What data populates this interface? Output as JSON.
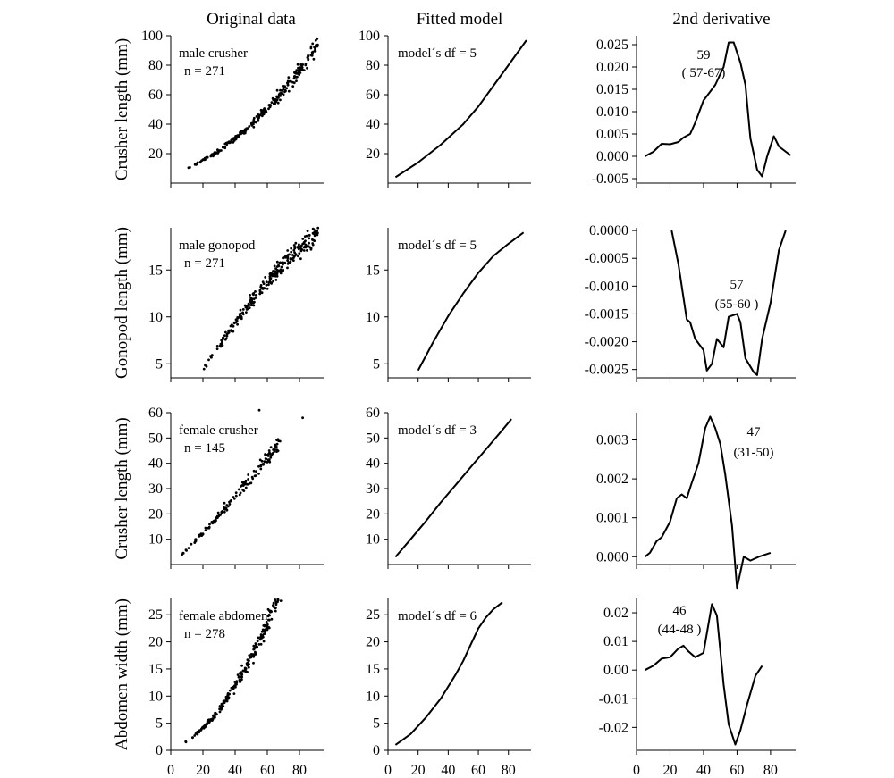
{
  "column_titles": [
    "Original data",
    "Fitted model",
    "2nd derivative"
  ],
  "chart_data": [
    {
      "type": "scatter",
      "row": "male-crusher",
      "column": "original",
      "ylabel": "Crusher length (mm)",
      "annotation": [
        "male crusher",
        "n = 271"
      ],
      "xlim": [
        0,
        95
      ],
      "ylim": [
        0,
        100
      ],
      "yticks": [
        20,
        40,
        60,
        80,
        100
      ],
      "trend": {
        "a": 6,
        "b": 0.34,
        "c": 0.0068
      },
      "n": 271,
      "range": [
        5,
        92
      ],
      "jitter": 0.05
    },
    {
      "type": "line",
      "row": "male-crusher",
      "column": "fitted",
      "annotation": [
        "model´s df = 5"
      ],
      "xlim": [
        0,
        95
      ],
      "ylim": [
        0,
        100
      ],
      "yticks": [
        20,
        40,
        60,
        80,
        100
      ],
      "x": [
        5,
        20,
        35,
        50,
        60,
        70,
        80,
        92
      ],
      "y": [
        4,
        14,
        26,
        40,
        52,
        66,
        80,
        97
      ]
    },
    {
      "type": "line",
      "row": "male-crusher",
      "column": "2nd-derivative",
      "annotation": [
        "59",
        "( 57-67)"
      ],
      "xlim": [
        0,
        95
      ],
      "ylim": [
        -0.006,
        0.027
      ],
      "yticks": [
        -0.005,
        0.0,
        0.005,
        0.01,
        0.015,
        0.02,
        0.025
      ],
      "ytick_labels": [
        "-0.005",
        "0.000",
        "0.005",
        "0.010",
        "0.015",
        "0.020",
        "0.025"
      ],
      "x": [
        5,
        10,
        15,
        20,
        25,
        28,
        32,
        35,
        40,
        43,
        47,
        52,
        55,
        58,
        62,
        65,
        68,
        72,
        75,
        78,
        82,
        85,
        92
      ],
      "y": [
        0.0,
        0.001,
        0.0028,
        0.0027,
        0.0032,
        0.0042,
        0.005,
        0.0075,
        0.0125,
        0.014,
        0.016,
        0.02,
        0.0255,
        0.0255,
        0.021,
        0.016,
        0.004,
        -0.003,
        -0.0045,
        0.0,
        0.0045,
        0.0022,
        0.0002
      ]
    },
    {
      "type": "scatter",
      "row": "male-gonopod",
      "column": "original",
      "ylabel": "Gonopod length (mm)",
      "annotation": [
        "male gonopod",
        "n = 271"
      ],
      "xlim": [
        0,
        95
      ],
      "ylim": [
        3.5,
        19.5
      ],
      "yticks": [
        5,
        10,
        15
      ],
      "trend": {
        "a": -1.6,
        "b": 0.312,
        "c": -0.00095
      },
      "n": 271,
      "range": [
        20,
        92
      ],
      "jitter": 0.05
    },
    {
      "type": "line",
      "row": "male-gonopod",
      "column": "fitted",
      "annotation": [
        "model´s df = 5"
      ],
      "xlim": [
        0,
        95
      ],
      "ylim": [
        3.5,
        19.5
      ],
      "yticks": [
        5,
        10,
        15
      ],
      "x": [
        20,
        30,
        40,
        50,
        60,
        70,
        80,
        90
      ],
      "y": [
        4.3,
        7.3,
        10.1,
        12.5,
        14.7,
        16.5,
        17.8,
        19.0
      ]
    },
    {
      "type": "line",
      "row": "male-gonopod",
      "column": "2nd-derivative",
      "annotation": [
        "57",
        "(55-60  )"
      ],
      "xlim": [
        0,
        95
      ],
      "ylim": [
        -0.00265,
        5e-05
      ],
      "yticks": [
        -0.0025,
        -0.002,
        -0.0015,
        -0.001,
        -0.0005,
        0.0
      ],
      "ytick_labels": [
        "-0.0025",
        "-0.0020",
        "-0.0015",
        "-0.0010",
        "-0.0005",
        "0.0000"
      ],
      "x": [
        21,
        25,
        30,
        32,
        35,
        40,
        42,
        45,
        48,
        52,
        55,
        60,
        62,
        65,
        70,
        72,
        75,
        80,
        85,
        89
      ],
      "y": [
        0.0,
        -0.0006,
        -0.0016,
        -0.00165,
        -0.00195,
        -0.00215,
        -0.00252,
        -0.0024,
        -0.00195,
        -0.0021,
        -0.00155,
        -0.0015,
        -0.00165,
        -0.0023,
        -0.00255,
        -0.0026,
        -0.00195,
        -0.0013,
        -0.00035,
        0.0
      ]
    },
    {
      "type": "scatter",
      "row": "female-crusher",
      "column": "original",
      "ylabel": "Crusher length (mm)",
      "annotation": [
        "female crusher",
        "n = 145"
      ],
      "xlim": [
        0,
        95
      ],
      "ylim": [
        0,
        60
      ],
      "yticks": [
        10,
        20,
        30,
        40,
        50,
        60
      ],
      "trend": {
        "a": -0.4,
        "b": 0.62,
        "c": 0.0015
      },
      "n": 145,
      "range": [
        5,
        68
      ],
      "jitter": 0.06,
      "extra": [
        [
          55,
          61
        ],
        [
          82,
          58
        ]
      ]
    },
    {
      "type": "line",
      "row": "female-crusher",
      "column": "fitted",
      "annotation": [
        "model´s df = 3"
      ],
      "xlim": [
        0,
        95
      ],
      "ylim": [
        0,
        60
      ],
      "yticks": [
        10,
        20,
        30,
        40,
        50,
        60
      ],
      "x": [
        5,
        15,
        25,
        35,
        45,
        55,
        65,
        75,
        82
      ],
      "y": [
        3,
        10,
        17,
        24.5,
        31.5,
        38.5,
        45.5,
        52.5,
        57.5
      ]
    },
    {
      "type": "line",
      "row": "female-crusher",
      "column": "2nd-derivative",
      "annotation": [
        "47",
        "(31-50)"
      ],
      "xlim": [
        0,
        95
      ],
      "ylim": [
        -0.0002,
        0.0037
      ],
      "yticks": [
        0.0,
        0.001,
        0.002,
        0.003
      ],
      "ytick_labels": [
        "0.000",
        "0.001",
        "0.002",
        "0.003"
      ],
      "x": [
        5,
        8,
        12,
        15,
        20,
        24,
        27,
        30,
        33,
        37,
        41,
        44,
        47,
        50,
        53,
        57,
        60,
        64,
        68,
        73,
        80
      ],
      "y": [
        0.0,
        0.0001,
        0.0004,
        0.0005,
        0.0009,
        0.0015,
        0.0016,
        0.0015,
        0.0019,
        0.0024,
        0.0033,
        0.0036,
        0.0033,
        0.0029,
        0.0021,
        0.0008,
        -0.0008,
        0.0,
        -0.0001,
        0.0,
        0.0001
      ]
    },
    {
      "type": "scatter",
      "row": "female-abdomen",
      "column": "original",
      "ylabel": "Abdomen width (mm)",
      "annotation": [
        "female abdomen",
        "n = 278"
      ],
      "xlim": [
        0,
        95
      ],
      "ylim": [
        0,
        28
      ],
      "yticks": [
        0,
        5,
        10,
        15,
        20,
        25
      ],
      "trend": {
        "a": 0.2,
        "b": 0.1,
        "c": 0.0048
      },
      "n": 278,
      "range": [
        5,
        78
      ],
      "jitter": 0.07
    },
    {
      "type": "line",
      "row": "female-abdomen",
      "column": "fitted",
      "annotation": [
        "model´s df = 6"
      ],
      "xlim": [
        0,
        95
      ],
      "ylim": [
        0,
        28
      ],
      "yticks": [
        0,
        5,
        10,
        15,
        20,
        25
      ],
      "x": [
        5,
        15,
        25,
        35,
        45,
        50,
        55,
        60,
        65,
        70,
        76
      ],
      "y": [
        1,
        3,
        6,
        9.5,
        14,
        16.5,
        19.5,
        22.5,
        24.5,
        26,
        27.3
      ]
    },
    {
      "type": "line",
      "row": "female-abdomen",
      "column": "2nd-derivative",
      "annotation": [
        "46",
        "(44-48  )"
      ],
      "xlim": [
        0,
        95
      ],
      "ylim": [
        -0.028,
        0.025
      ],
      "yticks": [
        -0.02,
        -0.01,
        0.0,
        0.01,
        0.02
      ],
      "ytick_labels": [
        "-0.02",
        "-0.01",
        "0.00",
        "0.01",
        "0.02"
      ],
      "x": [
        5,
        10,
        12,
        15,
        20,
        25,
        28,
        31,
        35,
        40,
        45,
        48,
        52,
        55,
        59,
        62,
        66,
        71,
        75
      ],
      "y": [
        0.0,
        0.0015,
        0.0025,
        0.004,
        0.0045,
        0.0075,
        0.0085,
        0.0065,
        0.0045,
        0.006,
        0.023,
        0.019,
        -0.005,
        -0.019,
        -0.026,
        -0.021,
        -0.012,
        -0.002,
        0.0015
      ]
    }
  ],
  "x_axis": {
    "ticks": [
      0,
      20,
      40,
      60,
      80
    ],
    "tick_labels": [
      "0",
      "20",
      "40",
      "60",
      "80"
    ]
  }
}
